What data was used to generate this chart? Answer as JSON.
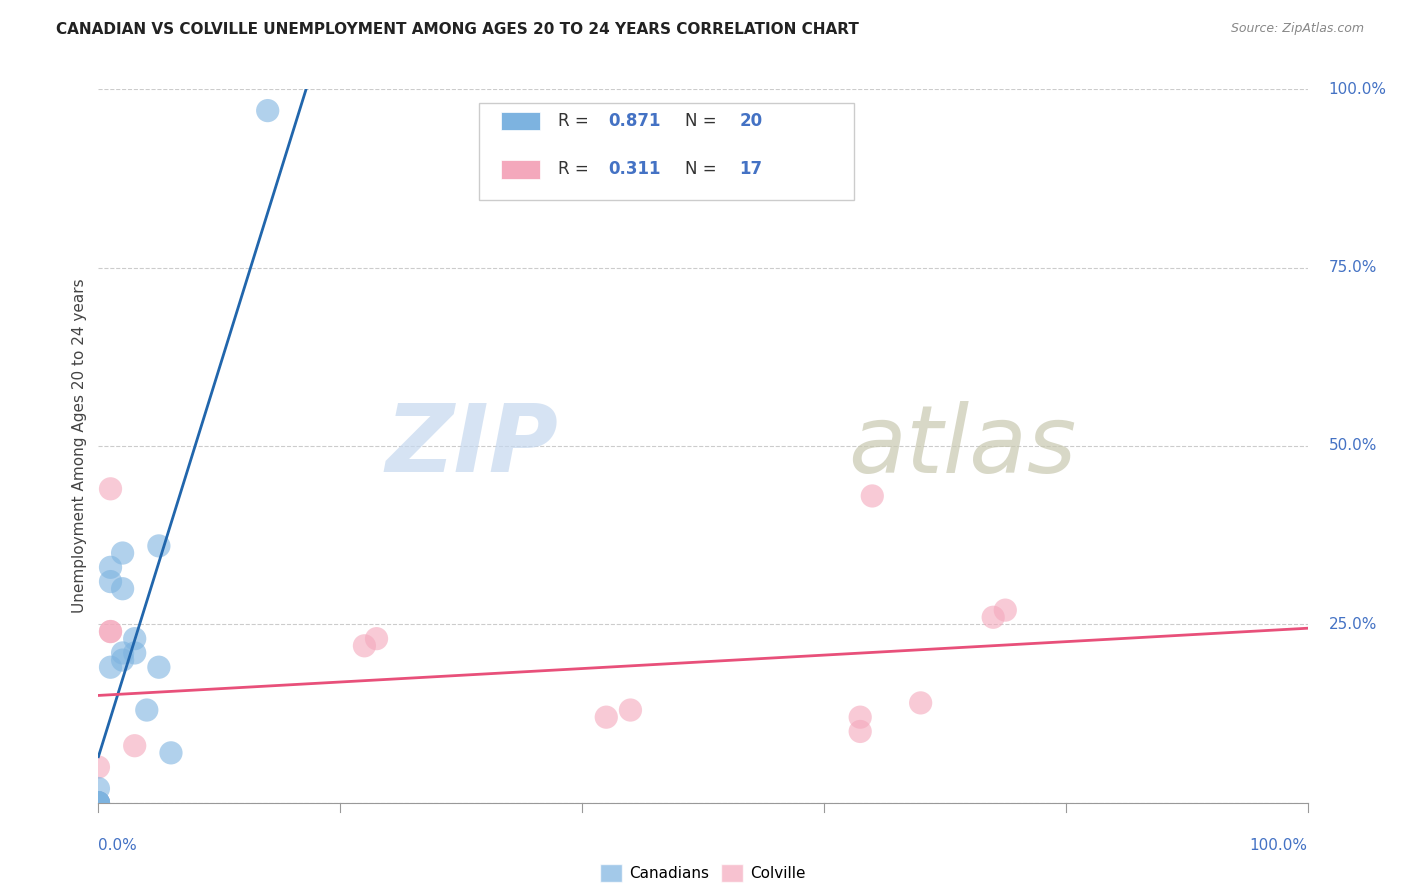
{
  "title": "CANADIAN VS COLVILLE UNEMPLOYMENT AMONG AGES 20 TO 24 YEARS CORRELATION CHART",
  "source": "Source: ZipAtlas.com",
  "ylabel": "Unemployment Among Ages 20 to 24 years",
  "xlim": [
    0,
    1.0
  ],
  "ylim": [
    0,
    1.0
  ],
  "right_yticks": [
    0.25,
    0.5,
    0.75,
    1.0
  ],
  "right_ytick_labels": [
    "25.0%",
    "50.0%",
    "75.0%",
    "100.0%"
  ],
  "grid_yticks": [
    0.0,
    0.25,
    0.5,
    0.75,
    1.0
  ],
  "canadians_x": [
    0.0,
    0.0,
    0.0,
    0.0,
    0.0,
    0.0,
    0.01,
    0.01,
    0.01,
    0.02,
    0.02,
    0.02,
    0.02,
    0.03,
    0.03,
    0.04,
    0.05,
    0.05,
    0.06,
    0.14
  ],
  "canadians_y": [
    0.0,
    0.0,
    0.0,
    0.0,
    0.0,
    0.02,
    0.19,
    0.31,
    0.33,
    0.2,
    0.21,
    0.3,
    0.35,
    0.21,
    0.23,
    0.13,
    0.36,
    0.19,
    0.07,
    0.97
  ],
  "colville_x": [
    0.0,
    0.0,
    0.0,
    0.01,
    0.01,
    0.01,
    0.03,
    0.22,
    0.23,
    0.42,
    0.44,
    0.63,
    0.63,
    0.64,
    0.68,
    0.74,
    0.75
  ],
  "colville_y": [
    0.0,
    0.0,
    0.05,
    0.44,
    0.24,
    0.24,
    0.08,
    0.22,
    0.23,
    0.12,
    0.13,
    0.1,
    0.12,
    0.43,
    0.14,
    0.26,
    0.27
  ],
  "canadian_color": "#7db3e0",
  "colville_color": "#f4a8bc",
  "trend_canadian_color": "#2166ac",
  "trend_colville_color": "#e8507a",
  "background_color": "#ffffff",
  "grid_color": "#cccccc",
  "legend_r1": "R =  0.871   N =  20",
  "legend_r2": "R =  0.311   N =  17",
  "legend_can_color": "#7db3e0",
  "legend_col_color": "#f4a8bc",
  "tick_color": "#4472c4",
  "title_fontsize": 11,
  "watermark_zip_color": "#c5d8ef",
  "watermark_atlas_color": "#c8c8b0"
}
